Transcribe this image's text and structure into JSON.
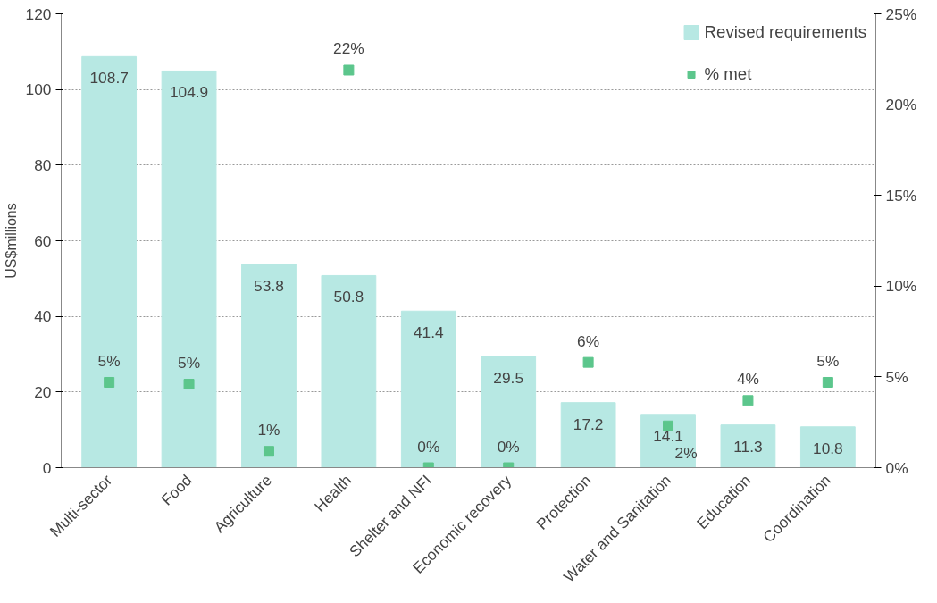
{
  "chart_data": {
    "type": "bar",
    "ylabel": "US$millions",
    "categories": [
      "Multi-sector",
      "Food",
      "Agriculture",
      "Health",
      "Shelter and NFI",
      "Economic recovery",
      "Protection",
      "Water and Sanitation",
      "Education",
      "Coordination"
    ],
    "series": [
      {
        "name": "Revised requirements",
        "color": "#b7e8e3",
        "values": [
          108.7,
          104.9,
          53.8,
          50.8,
          41.4,
          29.5,
          17.2,
          14.1,
          11.3,
          10.8
        ],
        "data_labels": true
      },
      {
        "name": "% met",
        "type": "scatter",
        "axis": "y2",
        "color": "#5cc68c",
        "marker": "square",
        "values": [
          4.7,
          4.6,
          0.9,
          21.9,
          0,
          0,
          5.8,
          2.3,
          3.7,
          4.7
        ],
        "value_labels": [
          "5%",
          "5%",
          "1%",
          "22%",
          "0%",
          "0%",
          "6%",
          "2%",
          "4%",
          "5%"
        ]
      }
    ],
    "ylim": [
      0,
      120
    ],
    "yticks": [
      0,
      20,
      40,
      60,
      80,
      100,
      120
    ],
    "y2lim": [
      0,
      25
    ],
    "y2ticks": [
      {
        "value": 0,
        "label": "0%"
      },
      {
        "value": 5,
        "label": "5%"
      },
      {
        "value": 10,
        "label": "10%"
      },
      {
        "value": 15,
        "label": "15%"
      },
      {
        "value": 20,
        "label": "20%"
      },
      {
        "value": 25,
        "label": "25%"
      }
    ],
    "grid": "y",
    "legend": "top right"
  }
}
